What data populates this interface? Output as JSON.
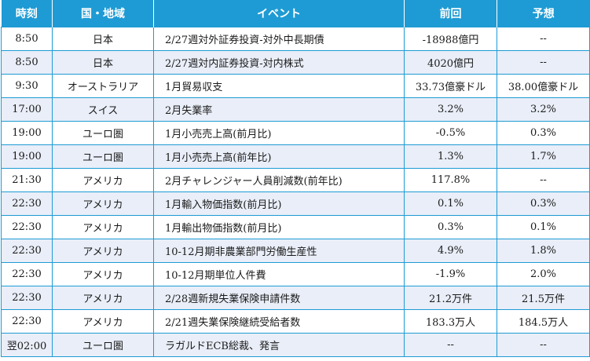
{
  "table": {
    "headers": [
      "時刻",
      "国・地域",
      "イベント",
      "前回",
      "予想"
    ],
    "rows": [
      {
        "time": "8:50",
        "region": "日本",
        "event": "2/27週対外証券投資-対外中長期債",
        "prev": "-18988億円",
        "forecast": "--"
      },
      {
        "time": "8:50",
        "region": "日本",
        "event": "2/27週対内証券投資-対内株式",
        "prev": "4020億円",
        "forecast": "--"
      },
      {
        "time": "9:30",
        "region": "オーストラリア",
        "event": "1月貿易収支",
        "prev": "33.73億豪ドル",
        "forecast": "38.00億豪ドル"
      },
      {
        "time": "17:00",
        "region": "スイス",
        "event": "2月失業率",
        "prev": "3.2%",
        "forecast": "3.2%"
      },
      {
        "time": "19:00",
        "region": "ユーロ圏",
        "event": "1月小売売上高(前月比)",
        "prev": "-0.5%",
        "forecast": "0.3%"
      },
      {
        "time": "19:00",
        "region": "ユーロ圏",
        "event": "1月小売売上高(前年比)",
        "prev": "1.3%",
        "forecast": "1.7%"
      },
      {
        "time": "21:30",
        "region": "アメリカ",
        "event": "2月チャレンジャー人員削減数(前年比)",
        "prev": "117.8%",
        "forecast": "--"
      },
      {
        "time": "22:30",
        "region": "アメリカ",
        "event": "1月輸入物価指数(前月比)",
        "prev": "0.1%",
        "forecast": "0.3%"
      },
      {
        "time": "22:30",
        "region": "アメリカ",
        "event": "1月輸出物価指数(前月比)",
        "prev": "0.3%",
        "forecast": "0.1%"
      },
      {
        "time": "22:30",
        "region": "アメリカ",
        "event": "10-12月期非農業部門労働生産性",
        "prev": "4.9%",
        "forecast": "1.8%"
      },
      {
        "time": "22:30",
        "region": "アメリカ",
        "event": "10-12月期単位人件費",
        "prev": "-1.9%",
        "forecast": "2.0%"
      },
      {
        "time": "22:30",
        "region": "アメリカ",
        "event": "2/28週新規失業保険申請件数",
        "prev": "21.2万件",
        "forecast": "21.5万件"
      },
      {
        "time": "22:30",
        "region": "アメリカ",
        "event": "2/21週失業保険継続受給者数",
        "prev": "183.3万人",
        "forecast": "184.5万人"
      },
      {
        "time": "翌02:00",
        "region": "ユーロ圏",
        "event": "ラガルドECB総裁、発言",
        "prev": "--",
        "forecast": "--"
      }
    ]
  },
  "colors": {
    "header_bg": "#1e9bd4",
    "row_alt_bg": "#e9eef8",
    "border": "#1e9bd4"
  }
}
